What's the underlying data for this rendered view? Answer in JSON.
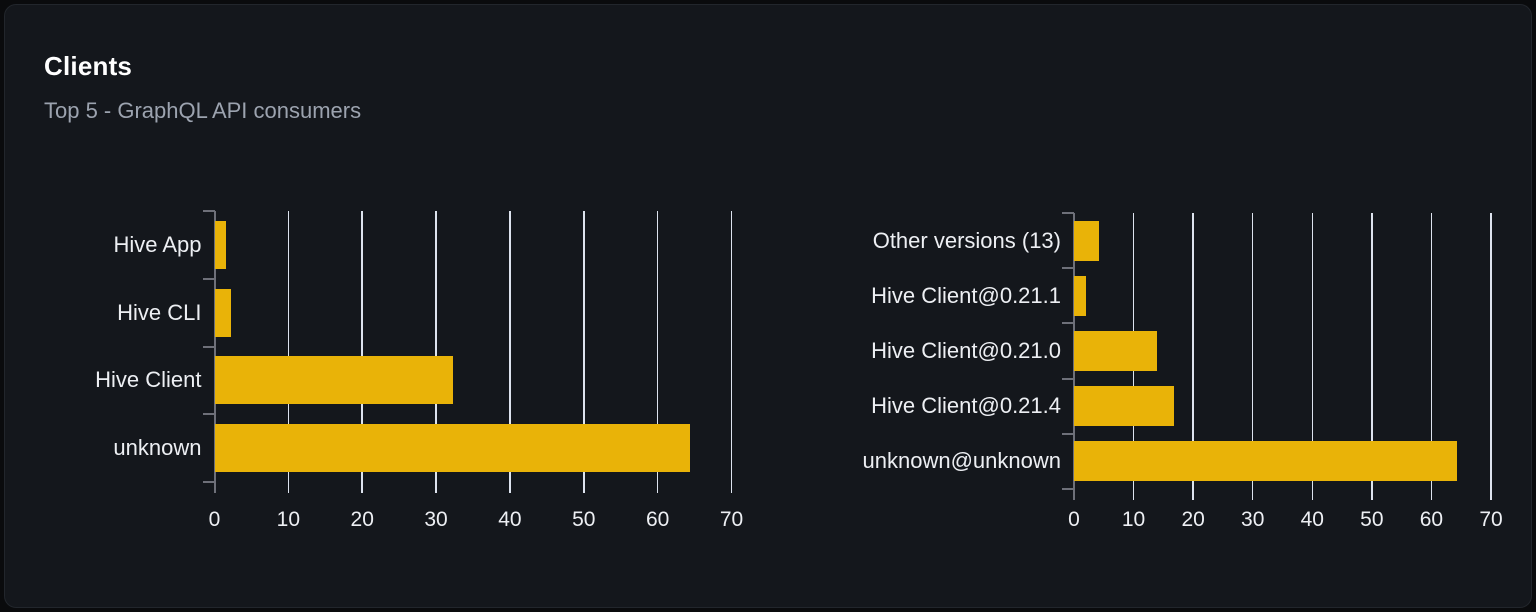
{
  "card": {
    "title": "Clients",
    "subtitle": "Top 5 - GraphQL API consumers"
  },
  "colors": {
    "page_bg": "#0a0b0d",
    "card_bg": "#14171c",
    "card_border": "#22262c",
    "title": "#ffffff",
    "subtitle": "#9ca3af",
    "bar": "#e9b308",
    "gridline": "#dde3ee",
    "axis_line": "#6e7079",
    "label": "#edeff3"
  },
  "chart_data": [
    {
      "type": "bar",
      "orientation": "horizontal",
      "name": "clients-by-name",
      "categories": [
        "Hive App",
        "Hive CLI",
        "Hive Client",
        "unknown"
      ],
      "values": [
        1.5,
        2.2,
        32.3,
        64.4
      ],
      "xlim": [
        0,
        70
      ],
      "x_ticks": [
        0,
        10,
        20,
        30,
        40,
        50,
        60,
        70
      ],
      "grid": true,
      "legend": false
    },
    {
      "type": "bar",
      "orientation": "horizontal",
      "name": "clients-by-version",
      "categories": [
        "Other versions (13)",
        "Hive Client@0.21.1",
        "Hive Client@0.21.0",
        "Hive Client@0.21.4",
        "unknown@unknown"
      ],
      "values": [
        4.2,
        2.0,
        13.9,
        16.8,
        64.3
      ],
      "xlim": [
        0,
        70
      ],
      "x_ticks": [
        0,
        10,
        20,
        30,
        40,
        50,
        60,
        70
      ],
      "grid": true,
      "legend": false
    }
  ]
}
